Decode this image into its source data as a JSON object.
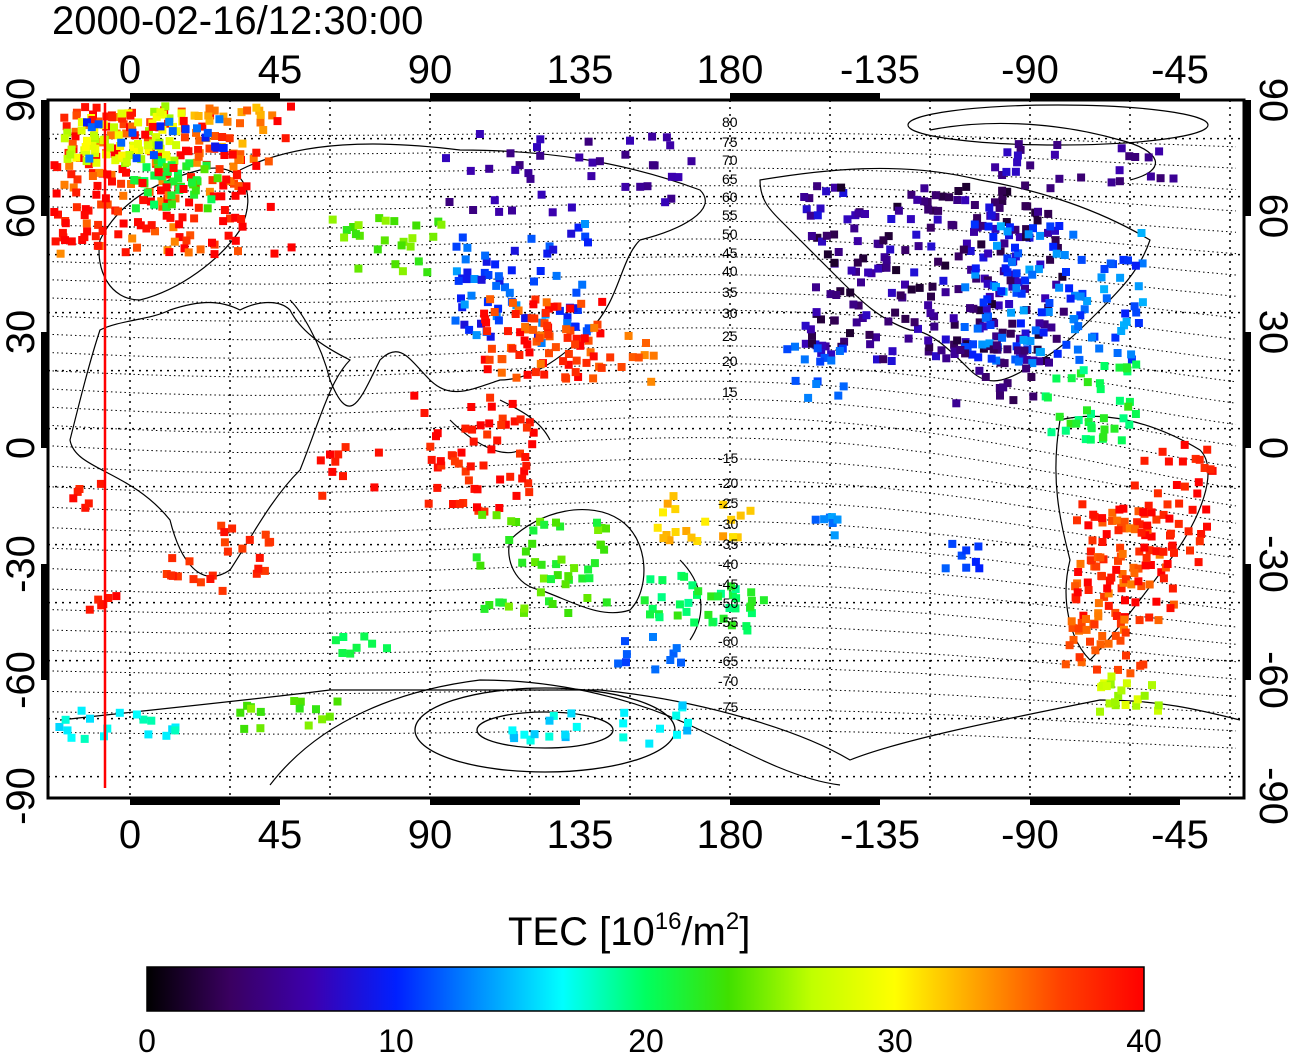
{
  "title": "2000-02-16/12:30:00",
  "x_ticks_top": [
    "0",
    "45",
    "90",
    "135",
    "180",
    "-135",
    "-90",
    "-45"
  ],
  "x_ticks_bottom": [
    "0",
    "45",
    "90",
    "135",
    "180",
    "-135",
    "-90",
    "-45"
  ],
  "y_ticks_left": [
    "90",
    "60",
    "30",
    "0",
    "-30",
    "-60",
    "-90"
  ],
  "y_ticks_right": [
    "90",
    "60",
    "30",
    "0",
    "-30",
    "-60",
    "-90"
  ],
  "contour_labels": [
    "80",
    "75",
    "70",
    "65",
    "60",
    "55",
    "50",
    "45",
    "40",
    "35",
    "30",
    "25",
    "20",
    "15",
    "-15",
    "-20",
    "-25",
    "-30",
    "-35",
    "-40",
    "-45",
    "-50",
    "-55",
    "-60",
    "-65",
    "-70",
    "-75"
  ],
  "colorbar": {
    "label_prefix": "TEC  [10",
    "label_sup1": "16",
    "label_mid": "/m",
    "label_sup2": "2",
    "label_suffix": "]",
    "ticks": [
      "0",
      "10",
      "20",
      "30",
      "40"
    ],
    "range": [
      0,
      40
    ],
    "colormap": [
      "#000000",
      "#3a0060",
      "#3c00b0",
      "#0020ff",
      "#0090ff",
      "#00ffff",
      "#00ff60",
      "#40e000",
      "#c0ff00",
      "#ffff00",
      "#ffa000",
      "#ff4000",
      "#ff0000"
    ]
  },
  "map": {
    "lon_range": [
      -28,
      332
    ],
    "lat_range": [
      -90,
      90
    ],
    "terminator_longitude": -8,
    "colors": {
      "terminator": "#ff0000",
      "grid": "#000000"
    }
  }
}
